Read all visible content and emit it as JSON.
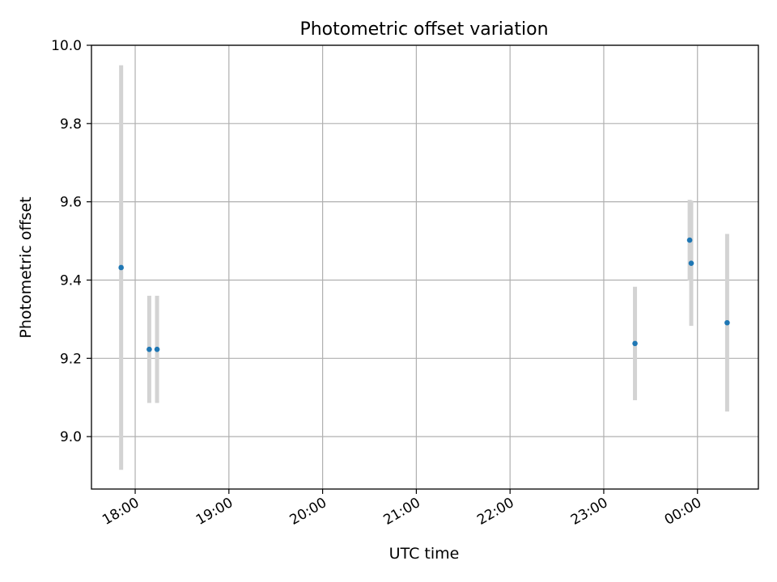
{
  "chart_data": {
    "type": "scatter",
    "title": "Photometric offset variation",
    "xlabel": "UTC time",
    "ylabel": "Photometric offset",
    "x_ticks": [
      "18:00",
      "19:00",
      "20:00",
      "21:00",
      "22:00",
      "23:00",
      "00:00"
    ],
    "y_ticks": [
      "9.0",
      "9.2",
      "9.4",
      "9.6",
      "9.8",
      "10.0"
    ],
    "xlim": [
      "17:32",
      "00:39"
    ],
    "ylim": [
      8.866,
      10.0
    ],
    "grid": true,
    "legend": "none",
    "marker_color": "#1f77b4",
    "errorbar_color": "#d3d3d3",
    "points": [
      {
        "x": "17:51",
        "y": 9.432,
        "err": 0.517
      },
      {
        "x": "18:09",
        "y": 9.223,
        "err": 0.137
      },
      {
        "x": "18:14",
        "y": 9.223,
        "err": 0.137
      },
      {
        "x": "23:20",
        "y": 9.238,
        "err": 0.145
      },
      {
        "x": "23:55",
        "y": 9.502,
        "err": 0.103
      },
      {
        "x": "23:56",
        "y": 9.443,
        "err": 0.16
      },
      {
        "x": "00:19",
        "y": 9.291,
        "err": 0.227
      }
    ]
  }
}
